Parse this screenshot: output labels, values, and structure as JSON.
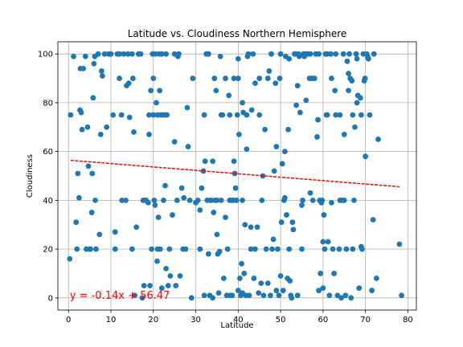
{
  "chart_data": {
    "type": "scatter",
    "title": "Latitude vs. Cloudiness Northern Hemisphere",
    "xlabel": "Latitude",
    "ylabel": "Cloudiness",
    "xlim": [
      -2.5,
      82
    ],
    "ylim": [
      -5,
      105
    ],
    "xticks": [
      0,
      10,
      20,
      30,
      40,
      50,
      60,
      70,
      80
    ],
    "yticks": [
      0,
      20,
      40,
      60,
      80,
      100
    ],
    "grid": true,
    "point_color": "#1f77b4",
    "regression": {
      "slope": -0.14,
      "intercept": 56.47,
      "x_range": [
        0.5,
        78
      ],
      "color": "#ff0000",
      "equation_label": "y = -0.14x + 56.47",
      "label_position": [
        0.3,
        1
      ]
    },
    "points": [
      [
        0.3,
        16
      ],
      [
        0.5,
        75
      ],
      [
        1.2,
        99
      ],
      [
        1.8,
        31
      ],
      [
        2,
        20
      ],
      [
        2.2,
        51
      ],
      [
        2.5,
        41
      ],
      [
        2.7,
        77
      ],
      [
        2.8,
        94
      ],
      [
        3,
        76
      ],
      [
        3.2,
        69
      ],
      [
        3.5,
        94
      ],
      [
        4,
        99
      ],
      [
        4.2,
        20
      ],
      [
        4.5,
        70
      ],
      [
        4.7,
        54
      ],
      [
        5,
        20
      ],
      [
        5.2,
        20
      ],
      [
        5.5,
        35
      ],
      [
        5.6,
        51
      ],
      [
        5.8,
        82
      ],
      [
        6,
        96
      ],
      [
        6.2,
        99
      ],
      [
        6.3,
        40
      ],
      [
        6.5,
        20
      ],
      [
        7,
        100
      ],
      [
        7.3,
        26
      ],
      [
        7.6,
        67
      ],
      [
        7.8,
        93
      ],
      [
        8,
        91
      ],
      [
        8.5,
        100
      ],
      [
        9,
        70
      ],
      [
        9.5,
        100
      ],
      [
        10,
        100
      ],
      [
        10.5,
        75
      ],
      [
        11,
        20
      ],
      [
        11,
        27
      ],
      [
        11.5,
        100
      ],
      [
        12,
        90
      ],
      [
        12,
        100
      ],
      [
        12.5,
        75
      ],
      [
        12.6,
        40
      ],
      [
        13,
        100
      ],
      [
        13.5,
        40
      ],
      [
        13.7,
        87
      ],
      [
        14,
        100
      ],
      [
        14.2,
        88
      ],
      [
        14.4,
        74
      ],
      [
        15,
        100
      ],
      [
        15,
        20
      ],
      [
        15.2,
        90
      ],
      [
        15.4,
        68
      ],
      [
        15.6,
        1
      ],
      [
        16,
        29
      ],
      [
        16.5,
        100
      ],
      [
        17,
        100
      ],
      [
        17.4,
        0
      ],
      [
        17.6,
        40
      ],
      [
        17.8,
        5
      ],
      [
        18,
        40
      ],
      [
        18.3,
        40
      ],
      [
        18.8,
        39
      ],
      [
        19,
        75
      ],
      [
        19,
        67
      ],
      [
        19.2,
        5
      ],
      [
        19.4,
        85
      ],
      [
        19.6,
        20
      ],
      [
        19.8,
        100
      ],
      [
        20,
        90
      ],
      [
        20,
        75
      ],
      [
        20.2,
        40
      ],
      [
        20.4,
        38
      ],
      [
        20.5,
        100
      ],
      [
        20.7,
        80
      ],
      [
        20.9,
        15
      ],
      [
        21,
        20
      ],
      [
        21,
        75
      ],
      [
        21.2,
        33
      ],
      [
        21.4,
        100
      ],
      [
        21.5,
        85
      ],
      [
        21.6,
        20
      ],
      [
        21.8,
        75
      ],
      [
        22,
        100
      ],
      [
        22,
        4
      ],
      [
        22.2,
        75
      ],
      [
        22.4,
        40
      ],
      [
        22.6,
        75
      ],
      [
        22.8,
        46
      ],
      [
        23,
        12
      ],
      [
        23,
        100
      ],
      [
        23.2,
        75
      ],
      [
        23.5,
        5
      ],
      [
        23.8,
        20
      ],
      [
        24,
        9
      ],
      [
        24.5,
        34
      ],
      [
        25,
        100
      ],
      [
        25,
        64
      ],
      [
        25.3,
        5
      ],
      [
        25.6,
        40
      ],
      [
        25.8,
        99
      ],
      [
        26,
        100
      ],
      [
        26.3,
        9
      ],
      [
        26.7,
        45
      ],
      [
        27,
        20
      ],
      [
        27.2,
        41
      ],
      [
        27.6,
        20
      ],
      [
        28,
        78
      ],
      [
        28.2,
        62
      ],
      [
        28.6,
        40
      ],
      [
        29,
        0
      ],
      [
        29.3,
        90
      ],
      [
        30,
        39
      ],
      [
        30.5,
        40
      ],
      [
        31,
        20
      ],
      [
        31,
        36
      ],
      [
        31.4,
        45
      ],
      [
        31.8,
        52
      ],
      [
        32,
        1
      ],
      [
        32,
        75
      ],
      [
        32.2,
        56
      ],
      [
        32.5,
        100
      ],
      [
        32.7,
        40
      ],
      [
        33,
        100
      ],
      [
        33,
        18
      ],
      [
        33.3,
        1
      ],
      [
        33.5,
        40
      ],
      [
        33.7,
        40
      ],
      [
        34,
        0
      ],
      [
        34,
        56
      ],
      [
        34.2,
        35
      ],
      [
        34.4,
        90
      ],
      [
        34.6,
        40
      ],
      [
        34.8,
        85
      ],
      [
        35,
        26
      ],
      [
        35,
        40
      ],
      [
        35.2,
        18
      ],
      [
        35.4,
        2
      ],
      [
        35.6,
        19
      ],
      [
        35.8,
        99
      ],
      [
        36,
        40
      ],
      [
        36,
        75
      ],
      [
        36.3,
        75
      ],
      [
        36.6,
        8
      ],
      [
        37,
        33
      ],
      [
        37,
        90
      ],
      [
        37.3,
        1
      ],
      [
        37.5,
        20
      ],
      [
        37.8,
        83
      ],
      [
        38,
        40
      ],
      [
        38,
        75
      ],
      [
        38.2,
        1
      ],
      [
        38.4,
        40
      ],
      [
        38.6,
        1
      ],
      [
        38.8,
        40
      ],
      [
        39,
        56
      ],
      [
        39,
        90
      ],
      [
        39.2,
        51
      ],
      [
        39.4,
        45
      ],
      [
        39.6,
        40
      ],
      [
        39.8,
        75
      ],
      [
        40,
        98
      ],
      [
        40,
        3
      ],
      [
        40,
        90
      ],
      [
        40.2,
        67
      ],
      [
        40.4,
        8
      ],
      [
        40.6,
        1
      ],
      [
        40.8,
        14
      ],
      [
        41,
        40
      ],
      [
        41,
        2
      ],
      [
        41,
        80
      ],
      [
        41.2,
        76
      ],
      [
        41.4,
        10
      ],
      [
        41.6,
        30
      ],
      [
        41.8,
        1
      ],
      [
        42,
        61
      ],
      [
        42,
        75
      ],
      [
        42.2,
        99
      ],
      [
        42.4,
        100
      ],
      [
        42.6,
        1
      ],
      [
        43,
        29
      ],
      [
        43,
        20
      ],
      [
        43.2,
        77
      ],
      [
        43.5,
        100
      ],
      [
        43.7,
        8
      ],
      [
        44,
        20
      ],
      [
        44,
        88
      ],
      [
        44.5,
        29
      ],
      [
        44.8,
        2
      ],
      [
        45,
        75
      ],
      [
        45,
        90
      ],
      [
        45.4,
        6
      ],
      [
        45.6,
        40
      ],
      [
        45.8,
        50
      ],
      [
        46,
        1
      ],
      [
        46.3,
        69
      ],
      [
        46.6,
        20
      ],
      [
        47,
        6
      ],
      [
        47,
        90
      ],
      [
        47.3,
        93
      ],
      [
        47.6,
        1
      ],
      [
        47.8,
        100
      ],
      [
        48,
        20
      ],
      [
        48.3,
        24
      ],
      [
        48.5,
        52
      ],
      [
        48.8,
        88
      ],
      [
        49,
        3
      ],
      [
        49,
        62
      ],
      [
        49.3,
        20
      ],
      [
        49.6,
        1
      ],
      [
        49.8,
        90
      ],
      [
        50,
        100
      ],
      [
        50,
        9
      ],
      [
        50.2,
        31
      ],
      [
        50.4,
        55
      ],
      [
        50.6,
        3
      ],
      [
        50.8,
        40
      ],
      [
        51,
        41
      ],
      [
        51,
        60
      ],
      [
        51.2,
        99
      ],
      [
        51.4,
        34
      ],
      [
        51.6,
        8
      ],
      [
        51.8,
        69
      ],
      [
        52,
        98
      ],
      [
        52,
        20
      ],
      [
        52.2,
        7
      ],
      [
        52.4,
        1
      ],
      [
        52.6,
        0
      ],
      [
        52.8,
        31
      ],
      [
        53,
        28
      ],
      [
        53.3,
        100
      ],
      [
        53.5,
        100
      ],
      [
        53.7,
        79
      ],
      [
        54,
        87
      ],
      [
        54,
        1
      ],
      [
        54.2,
        100
      ],
      [
        54.4,
        99
      ],
      [
        54.6,
        76
      ],
      [
        55,
        20
      ],
      [
        55,
        38
      ],
      [
        55.2,
        40
      ],
      [
        55.4,
        100
      ],
      [
        55.6,
        99
      ],
      [
        55.8,
        100
      ],
      [
        56,
        100
      ],
      [
        56,
        81
      ],
      [
        56.4,
        100
      ],
      [
        56.8,
        90
      ],
      [
        57,
        100
      ],
      [
        57,
        43
      ],
      [
        57.3,
        90
      ],
      [
        57.6,
        40
      ],
      [
        58,
        90
      ],
      [
        58.3,
        100
      ],
      [
        58.6,
        66
      ],
      [
        58.8,
        73
      ],
      [
        59,
        100
      ],
      [
        59,
        3
      ],
      [
        59.2,
        40
      ],
      [
        59.4,
        10
      ],
      [
        59.6,
        39
      ],
      [
        59.8,
        40
      ],
      [
        60,
        4
      ],
      [
        60,
        23
      ],
      [
        60.2,
        34
      ],
      [
        60.4,
        20
      ],
      [
        60.6,
        100
      ],
      [
        60.8,
        75
      ],
      [
        61,
        100
      ],
      [
        61,
        75
      ],
      [
        61.2,
        23
      ],
      [
        61.5,
        1
      ],
      [
        61.8,
        100
      ],
      [
        62,
        90
      ],
      [
        62,
        39
      ],
      [
        62.3,
        20
      ],
      [
        62.6,
        10
      ],
      [
        62.8,
        85
      ],
      [
        63,
        100
      ],
      [
        63,
        75
      ],
      [
        63.4,
        1
      ],
      [
        63.8,
        20
      ],
      [
        64,
        75
      ],
      [
        64,
        40
      ],
      [
        64.3,
        0
      ],
      [
        64.6,
        40
      ],
      [
        64.8,
        100
      ],
      [
        65,
        67
      ],
      [
        65,
        40
      ],
      [
        65.3,
        1
      ],
      [
        65.5,
        20
      ],
      [
        65.7,
        97
      ],
      [
        66,
        92
      ],
      [
        66,
        85
      ],
      [
        66.2,
        100
      ],
      [
        66.4,
        90
      ],
      [
        66.6,
        0
      ],
      [
        66.8,
        89
      ],
      [
        67,
        75
      ],
      [
        67,
        20
      ],
      [
        67.3,
        40
      ],
      [
        67.5,
        70
      ],
      [
        67.8,
        100
      ],
      [
        68,
        98
      ],
      [
        68,
        80
      ],
      [
        68.2,
        83
      ],
      [
        68.5,
        4
      ],
      [
        68.8,
        82
      ],
      [
        69,
        75
      ],
      [
        69,
        21
      ],
      [
        69.2,
        20
      ],
      [
        69.5,
        100
      ],
      [
        69.7,
        89
      ],
      [
        69.9,
        90
      ],
      [
        70,
        58
      ],
      [
        70.3,
        100
      ],
      [
        70.5,
        99
      ],
      [
        70.7,
        98
      ],
      [
        71,
        75
      ],
      [
        71.5,
        3
      ],
      [
        71.8,
        32
      ],
      [
        72,
        100
      ],
      [
        72.6,
        8
      ],
      [
        73,
        65
      ],
      [
        78,
        22
      ],
      [
        78.5,
        1
      ]
    ]
  }
}
